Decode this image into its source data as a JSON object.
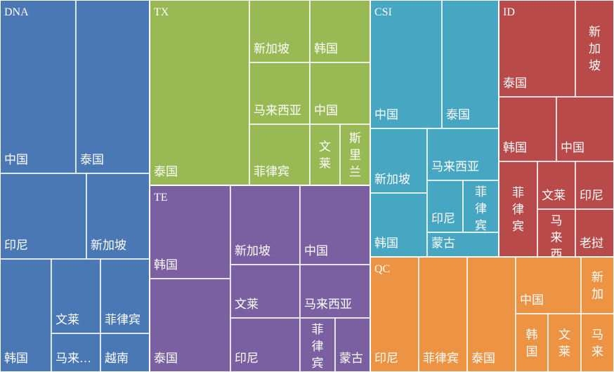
{
  "chart_data": {
    "type": "treemap",
    "title": "",
    "groups": [
      {
        "name": "DNA",
        "color": "#4a78b5",
        "children": [
          {
            "name": "中国",
            "value": 26
          },
          {
            "name": "泰国",
            "value": 26
          },
          {
            "name": "印尼",
            "value": 14
          },
          {
            "name": "新加坡",
            "value": 11
          },
          {
            "name": "韩国",
            "value": 11
          },
          {
            "name": "文莱",
            "value": 7
          },
          {
            "name": "菲律宾",
            "value": 7
          },
          {
            "name": "马来…",
            "value": 4
          },
          {
            "name": "越南",
            "value": 4
          }
        ]
      },
      {
        "name": "TX",
        "color": "#98b954",
        "children": [
          {
            "name": "泰国",
            "value": 40
          },
          {
            "name": "新加坡",
            "value": 8
          },
          {
            "name": "韩国",
            "value": 8
          },
          {
            "name": "马来西亚",
            "value": 8
          },
          {
            "name": "中国",
            "value": 8
          },
          {
            "name": "菲律宾",
            "value": 8
          },
          {
            "name": "文莱",
            "value": 4
          },
          {
            "name": "斯里兰",
            "value": 4
          }
        ]
      },
      {
        "name": "TE",
        "color": "#7a60a0",
        "children": [
          {
            "name": "韩国",
            "value": 16
          },
          {
            "name": "泰国",
            "value": 15
          },
          {
            "name": "新加坡",
            "value": 9
          },
          {
            "name": "中国",
            "value": 9
          },
          {
            "name": "文莱",
            "value": 6
          },
          {
            "name": "马来西亚",
            "value": 6
          },
          {
            "name": "印尼",
            "value": 6
          },
          {
            "name": "菲律宾",
            "value": 3
          },
          {
            "name": "蒙古",
            "value": 3
          }
        ]
      },
      {
        "name": "CSI",
        "color": "#47a6c2",
        "children": [
          {
            "name": "中国",
            "value": 16
          },
          {
            "name": "泰国",
            "value": 13
          },
          {
            "name": "新加坡",
            "value": 7
          },
          {
            "name": "韩国",
            "value": 7
          },
          {
            "name": "马来西亚",
            "value": 6
          },
          {
            "name": "印尼",
            "value": 4
          },
          {
            "name": "菲律宾",
            "value": 4
          },
          {
            "name": "蒙古",
            "value": 4
          }
        ]
      },
      {
        "name": "ID",
        "color": "#b84a4a",
        "children": [
          {
            "name": "泰国",
            "value": 12
          },
          {
            "name": "新加坡",
            "value": 6
          },
          {
            "name": "韩国",
            "value": 9
          },
          {
            "name": "中国",
            "value": 9
          },
          {
            "name": "菲律宾",
            "value": 6
          },
          {
            "name": "文莱",
            "value": 4
          },
          {
            "name": "印尼",
            "value": 4
          },
          {
            "name": "马来西亚",
            "value": 4
          },
          {
            "name": "老挝",
            "value": 4
          }
        ]
      },
      {
        "name": "QC",
        "color": "#ec9444",
        "children": [
          {
            "name": "印尼",
            "value": 11
          },
          {
            "name": "菲律宾",
            "value": 11
          },
          {
            "name": "泰国",
            "value": 11
          },
          {
            "name": "中国",
            "value": 9
          },
          {
            "name": "新加",
            "value": 5
          },
          {
            "name": "韩国",
            "value": 4
          },
          {
            "name": "文莱",
            "value": 4
          },
          {
            "name": "马来",
            "value": 5
          }
        ]
      }
    ]
  }
}
